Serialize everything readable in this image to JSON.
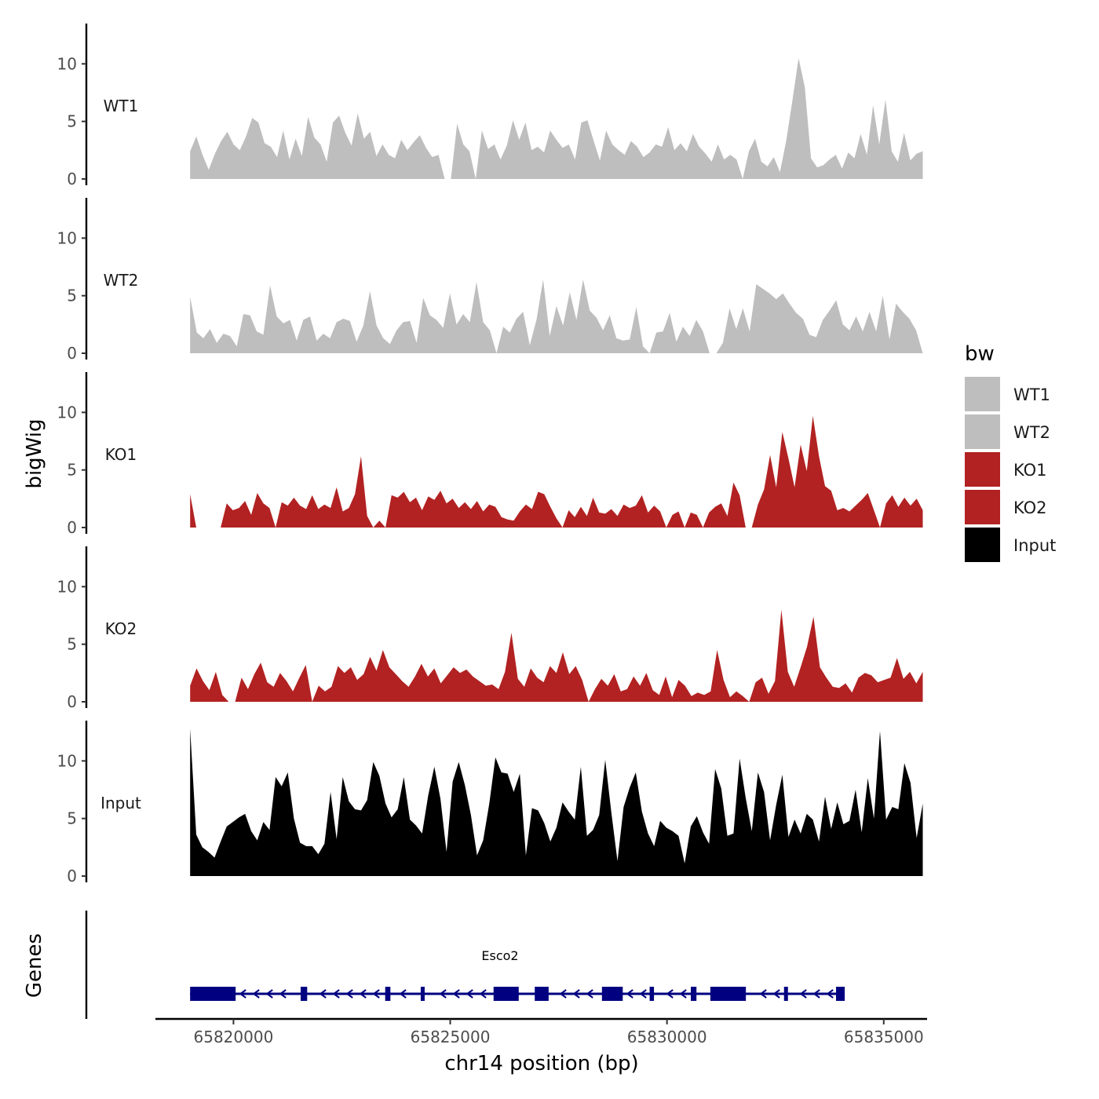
{
  "chart_data": {
    "type": "area",
    "ylabel": "bigWig",
    "xlabel": "chr14 position (bp)",
    "xlim": [
      65818200,
      65836000
    ],
    "xticks": [
      65820000,
      65825000,
      65830000,
      65835000
    ],
    "xtick_labels": [
      "65820000",
      "65825000",
      "65830000",
      "65835000"
    ],
    "ylim": [
      0,
      13.5
    ],
    "yticks": [
      0,
      5,
      10
    ],
    "ytick_labels": [
      "0",
      "5",
      "10"
    ],
    "track_start": 65819000,
    "track_end": 65835900,
    "legend": {
      "title": "bw",
      "placement": "right",
      "entries": [
        {
          "label": "WT1",
          "color": "#bebebe"
        },
        {
          "label": "WT2",
          "color": "#bebebe"
        },
        {
          "label": "KO1",
          "color": "#b22222"
        },
        {
          "label": "KO2",
          "color": "#b22222"
        },
        {
          "label": "Input",
          "color": "#000000"
        }
      ]
    },
    "series": [
      {
        "name": "WT1",
        "color": "#bebebe",
        "values": [
          2.4,
          3.7,
          2.1,
          0.8,
          2.2,
          3.3,
          4.1,
          3.0,
          2.5,
          3.7,
          5.3,
          4.9,
          3.1,
          2.8,
          1.9,
          4.2,
          1.7,
          3.5,
          2.0,
          5.4,
          3.6,
          3.0,
          1.5,
          4.9,
          5.5,
          4.0,
          2.9,
          5.7,
          3.5,
          4.1,
          2.0,
          3.0,
          2.1,
          1.8,
          3.4,
          2.5,
          3.2,
          3.8,
          2.7,
          1.9,
          2.1,
          0.0,
          0.0,
          4.8,
          3.0,
          2.4,
          0.0,
          4.2,
          2.6,
          3.0,
          1.7,
          2.9,
          5.1,
          3.4,
          4.9,
          2.5,
          2.8,
          2.3,
          4.2,
          3.4,
          2.7,
          3.0,
          1.7,
          4.9,
          5.1,
          3.3,
          1.6,
          4.2,
          3.0,
          2.5,
          2.1,
          3.3,
          2.8,
          1.9,
          2.3,
          3.0,
          2.8,
          4.5,
          2.5,
          3.1,
          2.4,
          3.9,
          2.8,
          2.2,
          1.5,
          3.0,
          1.7,
          2.1,
          1.7,
          0.0,
          2.4,
          3.5,
          1.5,
          1.1,
          1.9,
          0.6,
          3.3,
          6.8,
          10.5,
          8.0,
          1.8,
          1.0,
          1.2,
          1.7,
          2.1,
          0.9,
          2.3,
          1.8,
          3.9,
          2.1,
          6.4,
          3.0,
          6.9,
          2.4,
          1.5,
          4.0,
          1.6,
          2.2,
          2.4
        ]
      },
      {
        "name": "WT2",
        "color": "#bebebe",
        "values": [
          4.9,
          1.8,
          1.3,
          2.1,
          0.9,
          1.7,
          1.5,
          0.6,
          3.4,
          3.3,
          1.9,
          1.6,
          5.9,
          3.2,
          2.6,
          2.9,
          1.1,
          2.9,
          3.2,
          1.1,
          1.7,
          1.3,
          2.7,
          3.0,
          2.8,
          1.0,
          2.4,
          5.4,
          2.4,
          1.3,
          0.8,
          2.0,
          2.7,
          2.8,
          0.9,
          4.8,
          3.3,
          2.9,
          2.2,
          5.2,
          2.5,
          3.4,
          2.7,
          6.2,
          2.7,
          2.0,
          0.0,
          2.3,
          1.8,
          3.0,
          3.6,
          0.7,
          2.9,
          6.4,
          1.5,
          4.1,
          2.4,
          5.3,
          2.9,
          6.4,
          3.7,
          3.1,
          2.0,
          3.3,
          1.3,
          1.1,
          1.2,
          4.0,
          0.6,
          0.0,
          1.8,
          1.9,
          3.5,
          1.0,
          2.3,
          1.5,
          2.9,
          1.9,
          0.0,
          0.0,
          0.9,
          3.9,
          2.1,
          3.9,
          1.9,
          6.0,
          5.6,
          5.2,
          4.7,
          5.2,
          4.3,
          3.5,
          3.0,
          1.6,
          1.4,
          2.9,
          3.7,
          4.6,
          2.5,
          2.0,
          3.2,
          1.9,
          3.6,
          1.9,
          5.0,
          1.2,
          4.3,
          3.6,
          3.0,
          2.0,
          0.0
        ]
      },
      {
        "name": "KO1",
        "color": "#b22222",
        "values": [
          2.9,
          0.0,
          0.0,
          0.0,
          0.0,
          0.0,
          2.1,
          1.5,
          1.7,
          2.3,
          1.1,
          3.0,
          2.1,
          1.7,
          0.0,
          2.2,
          1.9,
          2.6,
          1.9,
          1.6,
          2.8,
          1.6,
          2.0,
          1.7,
          3.5,
          1.4,
          1.7,
          2.9,
          6.2,
          1.0,
          0.0,
          0.6,
          0.0,
          2.8,
          2.6,
          3.1,
          2.2,
          2.6,
          1.5,
          2.7,
          2.4,
          3.2,
          2.1,
          2.5,
          1.7,
          2.2,
          1.6,
          2.3,
          1.4,
          2.0,
          1.8,
          0.9,
          0.7,
          0.6,
          1.4,
          2.0,
          1.6,
          3.1,
          2.9,
          1.8,
          0.8,
          0.0,
          1.5,
          0.9,
          1.8,
          1.0,
          2.6,
          1.3,
          1.2,
          1.6,
          1.0,
          2.0,
          1.7,
          1.9,
          2.8,
          1.3,
          1.9,
          1.4,
          0.0,
          1.1,
          1.4,
          0.0,
          1.3,
          1.1,
          0.0,
          1.3,
          1.8,
          2.1,
          1.0,
          3.9,
          2.8,
          0.0,
          0.0,
          2.0,
          3.3,
          6.3,
          3.5,
          8.3,
          6.0,
          3.5,
          7.2,
          4.9,
          9.7,
          6.2,
          3.6,
          3.2,
          1.5,
          1.7,
          1.4,
          1.9,
          2.4,
          3.0,
          1.5,
          0.0,
          2.1,
          2.8,
          1.8,
          2.6,
          1.9,
          2.5,
          1.5
        ]
      },
      {
        "name": "KO2",
        "color": "#b22222",
        "values": [
          1.4,
          2.9,
          1.8,
          1.0,
          2.6,
          0.6,
          0.0,
          0.0,
          2.1,
          1.1,
          2.4,
          3.4,
          1.7,
          1.3,
          2.5,
          1.8,
          0.9,
          2.1,
          3.2,
          0.0,
          1.4,
          0.9,
          1.3,
          3.1,
          2.5,
          3.0,
          1.9,
          2.4,
          3.9,
          2.7,
          4.5,
          3.0,
          2.4,
          1.8,
          1.3,
          2.2,
          3.3,
          2.2,
          2.9,
          1.6,
          2.3,
          3.0,
          2.5,
          2.8,
          2.2,
          1.8,
          1.4,
          1.5,
          1.1,
          2.6,
          6.0,
          2.0,
          1.3,
          2.9,
          2.1,
          1.7,
          3.1,
          2.5,
          4.3,
          2.4,
          3.1,
          1.9,
          0.0,
          1.1,
          2.0,
          1.4,
          2.4,
          0.9,
          1.1,
          2.2,
          1.4,
          2.5,
          1.0,
          0.6,
          2.2,
          0.4,
          1.9,
          1.4,
          0.5,
          0.8,
          0.6,
          0.9,
          4.5,
          1.9,
          0.4,
          0.9,
          0.5,
          0.0,
          1.7,
          2.1,
          0.7,
          1.8,
          8.0,
          2.6,
          1.3,
          3.0,
          4.8,
          7.4,
          3.0,
          2.1,
          1.3,
          1.2,
          1.6,
          0.8,
          2.1,
          2.5,
          2.3,
          1.7,
          1.9,
          2.1,
          3.8,
          2.0,
          2.6,
          1.6,
          2.6
        ]
      },
      {
        "name": "Input",
        "color": "#000000",
        "values": [
          12.8,
          3.6,
          2.5,
          2.1,
          1.6,
          3.0,
          4.3,
          4.7,
          5.1,
          5.4,
          3.9,
          3.1,
          4.7,
          4.0,
          8.6,
          7.8,
          9.0,
          5.0,
          2.9,
          2.6,
          2.6,
          1.9,
          2.8,
          7.3,
          3.2,
          8.6,
          6.5,
          5.8,
          5.7,
          6.6,
          9.9,
          8.7,
          6.3,
          5.1,
          5.8,
          8.6,
          4.9,
          4.4,
          3.7,
          7.0,
          9.5,
          6.7,
          2.1,
          8.2,
          9.9,
          7.9,
          5.3,
          1.8,
          3.1,
          6.3,
          10.3,
          9.0,
          8.9,
          7.3,
          8.9,
          1.8,
          5.9,
          5.7,
          4.6,
          3.0,
          4.2,
          6.4,
          5.6,
          4.9,
          9.5,
          3.5,
          4.0,
          5.3,
          10.1,
          5.5,
          1.3,
          6.0,
          7.7,
          9.0,
          5.6,
          3.7,
          2.6,
          4.8,
          4.2,
          3.9,
          3.5,
          1.1,
          4.3,
          5.2,
          3.8,
          2.8,
          9.3,
          7.6,
          3.5,
          3.7,
          10.2,
          6.8,
          3.9,
          9.0,
          7.3,
          3.1,
          6.2,
          8.8,
          3.4,
          4.9,
          3.7,
          5.4,
          4.9,
          3.0,
          6.9,
          4.1,
          6.4,
          4.5,
          4.8,
          7.5,
          3.8,
          8.5,
          5.0,
          12.6,
          4.9,
          6.0,
          5.8,
          9.8,
          8.1,
          3.3,
          6.3
        ]
      }
    ],
    "gene_track": {
      "label": "Genes",
      "gene_name": "Esco2",
      "color": "#000080",
      "strand": "-",
      "start": 65819000,
      "end": 65834000,
      "exons": [
        [
          65819000,
          65820050
        ],
        [
          65821550,
          65821700
        ],
        [
          65823500,
          65823620
        ],
        [
          65824320,
          65824400
        ],
        [
          65826000,
          65826580
        ],
        [
          65826950,
          65827270
        ],
        [
          65828500,
          65828980
        ],
        [
          65829600,
          65829700
        ],
        [
          65830550,
          65830680
        ],
        [
          65831000,
          65831820
        ],
        [
          65832700,
          65832780
        ],
        [
          65833900,
          65834100
        ]
      ]
    }
  }
}
